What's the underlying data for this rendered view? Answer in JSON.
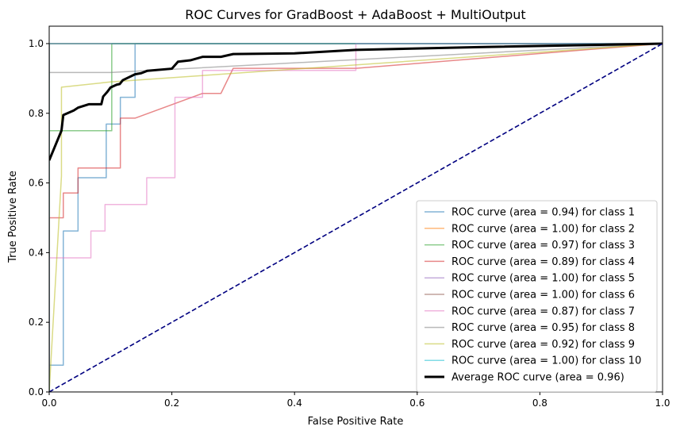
{
  "chart_data": {
    "type": "line",
    "title": "ROC Curves for GradBoost + AdaBoost + MultiOutput",
    "xlabel": "False Positive Rate",
    "ylabel": "True Positive Rate",
    "xlim": [
      0.0,
      1.0
    ],
    "ylim": [
      0.0,
      1.05
    ],
    "xticks": [
      "0.0",
      "0.2",
      "0.4",
      "0.6",
      "0.8",
      "1.0"
    ],
    "yticks": [
      "0.0",
      "0.2",
      "0.4",
      "0.6",
      "0.8",
      "1.0"
    ],
    "grid": false,
    "legend_position": "lower-right",
    "series": [
      {
        "name": "ROC curve (area = 0.94) for class 1",
        "color": "#1f77b4",
        "step": true,
        "x": [
          0,
          0,
          0.023,
          0.023,
          0.047,
          0.047,
          0.093,
          0.093,
          0.116,
          0.116,
          0.14,
          0.14,
          1.0
        ],
        "y": [
          0,
          0.077,
          0.077,
          0.462,
          0.462,
          0.615,
          0.615,
          0.769,
          0.769,
          0.846,
          0.846,
          1.0,
          1.0
        ]
      },
      {
        "name": "ROC curve (area = 1.00) for class 2",
        "color": "#ff7f0e",
        "step": true,
        "x": [
          0,
          0,
          1.0
        ],
        "y": [
          0,
          1.0,
          1.0
        ]
      },
      {
        "name": "ROC curve (area = 0.97) for class 3",
        "color": "#2ca02c",
        "step": true,
        "x": [
          0,
          0,
          0.102,
          0.102,
          1.0
        ],
        "y": [
          0,
          0.75,
          0.75,
          1.0,
          1.0
        ]
      },
      {
        "name": "ROC curve (area = 0.89) for class 4",
        "color": "#d62728",
        "step": false,
        "x": [
          0,
          0,
          0.023,
          0.023,
          0.047,
          0.047,
          0.116,
          0.116,
          0.14,
          0.25,
          0.28,
          0.3,
          0.5,
          1.0
        ],
        "y": [
          0,
          0.5,
          0.5,
          0.571,
          0.571,
          0.643,
          0.643,
          0.786,
          0.786,
          0.857,
          0.857,
          0.929,
          0.929,
          1.0
        ]
      },
      {
        "name": "ROC curve (area = 1.00) for class 5",
        "color": "#9467bd",
        "step": true,
        "x": [
          0,
          0,
          1.0
        ],
        "y": [
          0,
          1.0,
          1.0
        ]
      },
      {
        "name": "ROC curve (area = 1.00) for class 6",
        "color": "#8c564b",
        "step": true,
        "x": [
          0,
          0,
          1.0
        ],
        "y": [
          0,
          1.0,
          1.0
        ]
      },
      {
        "name": "ROC curve (area = 0.87) for class 7",
        "color": "#e377c2",
        "step": true,
        "x": [
          0,
          0,
          0.068,
          0.068,
          0.091,
          0.091,
          0.159,
          0.159,
          0.205,
          0.205,
          0.25,
          0.25,
          0.5,
          0.5,
          1.0
        ],
        "y": [
          0,
          0.385,
          0.385,
          0.462,
          0.462,
          0.538,
          0.538,
          0.615,
          0.615,
          0.846,
          0.846,
          0.923,
          0.923,
          1.0,
          1.0
        ]
      },
      {
        "name": "ROC curve (area = 0.95) for class 8",
        "color": "#7f7f7f",
        "step": false,
        "x": [
          0,
          0,
          0.1,
          1.0
        ],
        "y": [
          0,
          0.917,
          0.917,
          1.0
        ]
      },
      {
        "name": "ROC curve (area = 0.92) for class 9",
        "color": "#bcbd22",
        "step": false,
        "x": [
          0,
          0.02,
          0.02,
          0.1,
          1.0
        ],
        "y": [
          0,
          0.62,
          0.875,
          0.89,
          1.0
        ]
      },
      {
        "name": "ROC curve (area = 1.00) for class 10",
        "color": "#17becf",
        "step": true,
        "x": [
          0,
          0,
          1.0
        ],
        "y": [
          0,
          1.0,
          1.0
        ]
      },
      {
        "name": "Average ROC curve (area = 0.96)",
        "color": "#000000",
        "step": false,
        "bold": true,
        "x": [
          0,
          0.02,
          0.023,
          0.04,
          0.047,
          0.065,
          0.085,
          0.088,
          0.095,
          0.1,
          0.11,
          0.115,
          0.12,
          0.14,
          0.15,
          0.16,
          0.2,
          0.21,
          0.23,
          0.25,
          0.28,
          0.3,
          0.4,
          0.5,
          0.7,
          1.0
        ],
        "y": [
          0.665,
          0.75,
          0.795,
          0.808,
          0.816,
          0.826,
          0.826,
          0.848,
          0.862,
          0.874,
          0.882,
          0.884,
          0.895,
          0.912,
          0.915,
          0.922,
          0.928,
          0.948,
          0.952,
          0.962,
          0.962,
          0.97,
          0.972,
          0.982,
          0.99,
          1.0
        ]
      },
      {
        "name": "",
        "color": "#000080",
        "step": false,
        "dashed": true,
        "x": [
          0,
          1.0
        ],
        "y": [
          0,
          1.0
        ]
      }
    ]
  }
}
